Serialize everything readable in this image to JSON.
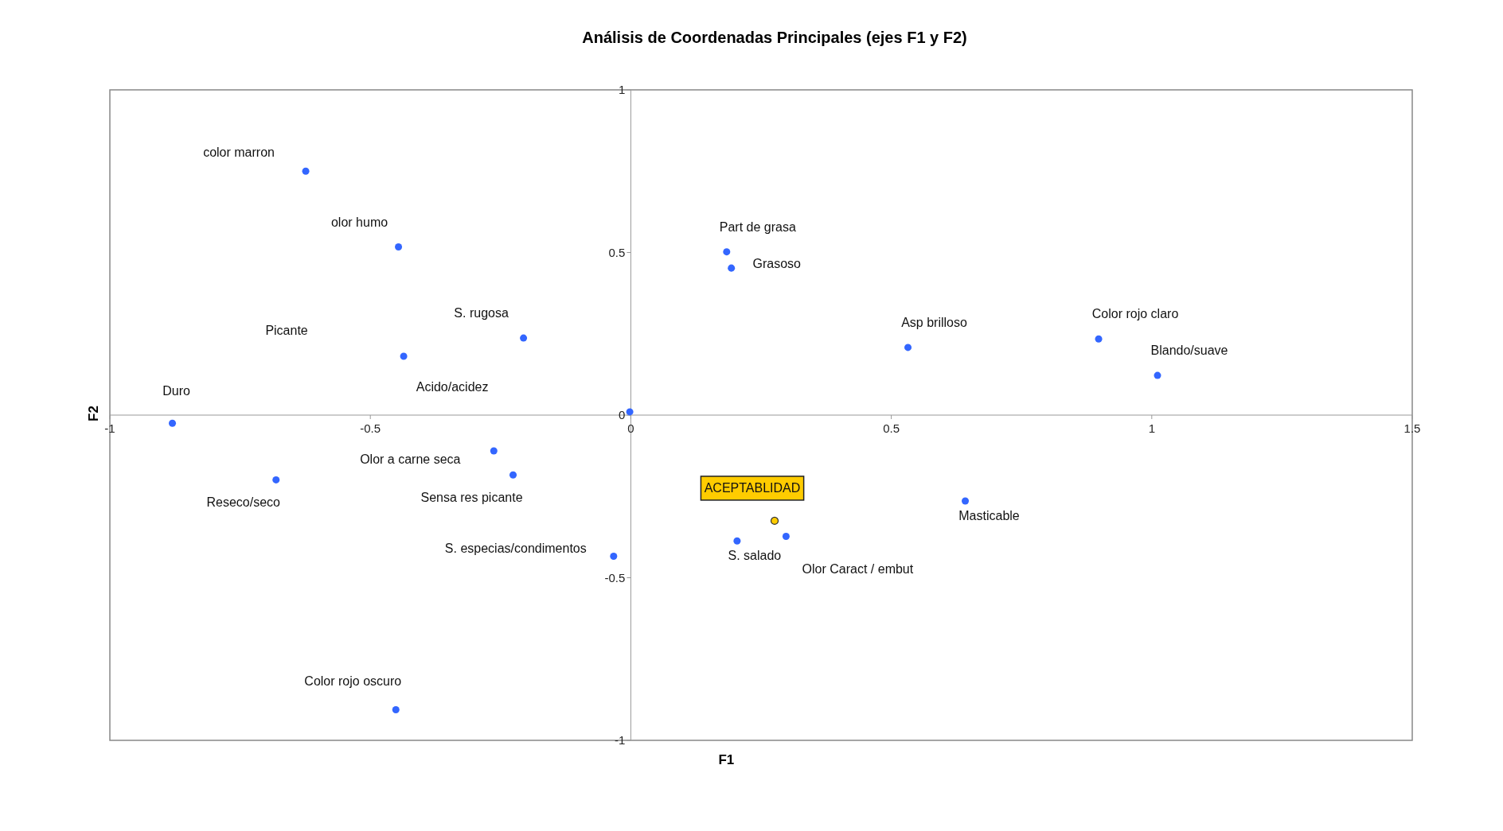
{
  "chart_data": {
    "type": "scatter",
    "title": "Análisis de Coordenadas Principales (ejes F1 y F2)",
    "xlabel": "F1",
    "ylabel": "F2",
    "xlim": [
      -1,
      1.5
    ],
    "ylim": [
      -1,
      1
    ],
    "xticks": [
      -1,
      -0.5,
      0,
      0.5,
      1,
      1.5
    ],
    "yticks": [
      -1,
      -0.5,
      0,
      0.5,
      1
    ],
    "marker": "circle",
    "series": [
      {
        "color": "#3366ff",
        "x": [
          -0.624,
          -0.446,
          -0.206,
          -0.436,
          -0.88,
          -0.002,
          -0.263,
          -0.226,
          -0.681,
          -0.033,
          -0.451,
          0.184,
          0.193,
          0.532,
          0.898,
          1.011,
          0.642,
          0.204,
          0.298
        ],
        "values": [
          0.75,
          0.517,
          0.237,
          0.181,
          -0.025,
          0.01,
          -0.11,
          -0.184,
          -0.199,
          -0.434,
          -0.906,
          0.502,
          0.452,
          0.208,
          0.234,
          0.122,
          -0.264,
          -0.387,
          -0.373
        ]
      },
      {
        "color": "#ffcc00",
        "x": [
          0.276
        ],
        "values": [
          -0.325
        ]
      }
    ],
    "annotations": [
      {
        "text": "color marron",
        "x": -0.624,
        "y": 0.75
      },
      {
        "text": "olor humo",
        "x": -0.446,
        "y": 0.517
      },
      {
        "text": "S. rugosa",
        "x": -0.206,
        "y": 0.237
      },
      "Picante",
      {
        "text": "Acido/acidez",
        "x": -0.436,
        "y": 0.181
      },
      {
        "text": "Duro",
        "x": -0.88,
        "y": -0.025
      },
      {
        "text": "Olor a carne seca",
        "x": -0.263,
        "y": -0.11
      },
      {
        "text": "Sensa res picante",
        "x": -0.226,
        "y": -0.184
      },
      {
        "text": "Reseco/seco",
        "x": -0.681,
        "y": -0.199
      },
      {
        "text": "S. especias/condimentos",
        "x": -0.033,
        "y": -0.434
      },
      {
        "text": "Color rojo oscuro",
        "x": -0.451,
        "y": -0.906
      },
      {
        "text": "Part de grasa",
        "x": 0.184,
        "y": 0.502
      },
      {
        "text": "Grasoso",
        "x": 0.193,
        "y": 0.452
      },
      {
        "text": "Asp brilloso",
        "x": 0.532,
        "y": 0.208
      },
      {
        "text": "Color rojo claro",
        "x": 0.898,
        "y": 0.234
      },
      {
        "text": "Blando/suave",
        "x": 1.011,
        "y": 0.122
      },
      {
        "text": "Masticable",
        "x": 0.642,
        "y": -0.264
      },
      {
        "text": "S. salado",
        "x": 0.204,
        "y": -0.387
      },
      {
        "text": "Olor Caract / embut",
        "x": 0.298,
        "y": -0.373
      },
      {
        "text": "ACEPTABLIDAD",
        "x": 0.276,
        "y": -0.325
      }
    ]
  }
}
